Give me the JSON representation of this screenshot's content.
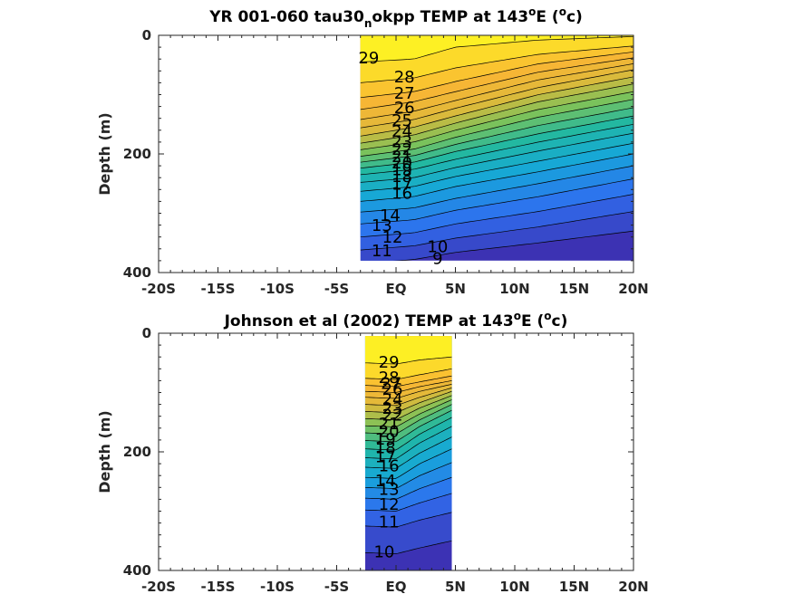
{
  "chart_data": [
    {
      "type": "heatmap",
      "title_parts": [
        "YR 001-060 tau30",
        "n",
        "okpp TEMP at 143",
        "o",
        "E (",
        "o",
        "c)"
      ],
      "ylabel": "Depth (m)",
      "xlim": [
        -20,
        20
      ],
      "ylim": [
        0,
        400
      ],
      "x_ticks": [
        -20,
        -15,
        -10,
        -5,
        0,
        5,
        10,
        15,
        20
      ],
      "x_tick_labels": [
        "-20S",
        "-15S",
        "-10S",
        "-5S",
        "EQ",
        "5N",
        "10N",
        "15N",
        "20N"
      ],
      "y_ticks": [
        0,
        200,
        400
      ],
      "y_tick_labels": [
        "0",
        "200",
        "400"
      ],
      "colormap": [
        "#3e26a8",
        "#2f6ff0",
        "#16a7d9",
        "#21b8a3",
        "#7cc25a",
        "#e0b93a",
        "#f9b634",
        "#fefb21"
      ],
      "data_extent": {
        "x": [
          -3,
          20
        ],
        "depth": [
          0,
          380
        ]
      },
      "contour_levels": [
        9,
        10,
        11,
        12,
        13,
        14,
        15,
        16,
        17,
        18,
        19,
        20,
        21,
        22,
        23,
        24,
        25,
        26,
        27,
        28,
        29
      ],
      "contour_depth_at_x": [
        -3,
        1.5,
        5,
        12,
        20
      ],
      "contour_depths": {
        "29": [
          45,
          40,
          20,
          8,
          2
        ],
        "28": [
          80,
          72,
          55,
          32,
          18
        ],
        "27": [
          105,
          95,
          78,
          48,
          28
        ],
        "26": [
          125,
          112,
          95,
          62,
          38
        ],
        "25": [
          142,
          128,
          110,
          75,
          48
        ],
        "24": [
          156,
          142,
          123,
          88,
          58
        ],
        "23": [
          170,
          155,
          136,
          100,
          70
        ],
        "22": [
          182,
          168,
          148,
          112,
          82
        ],
        "21": [
          193,
          180,
          160,
          125,
          95
        ],
        "20": [
          204,
          192,
          172,
          138,
          108
        ],
        "19": [
          214,
          203,
          184,
          152,
          122
        ],
        "18": [
          224,
          214,
          196,
          166,
          136
        ],
        "17": [
          235,
          226,
          209,
          180,
          150
        ],
        "16": [
          248,
          240,
          223,
          195,
          165
        ],
        "15": [
          263,
          255,
          238,
          212,
          182
        ],
        "14": [
          280,
          272,
          255,
          230,
          200
        ],
        "13": [
          298,
          291,
          275,
          250,
          220
        ],
        "12": [
          318,
          311,
          295,
          272,
          242
        ],
        "11": [
          340,
          333,
          318,
          297,
          268
        ],
        "10": [
          362,
          355,
          342,
          323,
          297
        ],
        "9": [
          385,
          378,
          366,
          350,
          330
        ]
      },
      "contour_labels": [
        {
          "text": "29",
          "x": -2.3,
          "depth": 40
        },
        {
          "text": "28",
          "x": 0.7,
          "depth": 72
        },
        {
          "text": "27",
          "x": 0.7,
          "depth": 99
        },
        {
          "text": "26",
          "x": 0.7,
          "depth": 124
        },
        {
          "text": "25",
          "x": 0.5,
          "depth": 145
        },
        {
          "text": "24",
          "x": 0.5,
          "depth": 163
        },
        {
          "text": "23",
          "x": 0.5,
          "depth": 181
        },
        {
          "text": "22",
          "x": 0.5,
          "depth": 194
        },
        {
          "text": "21",
          "x": 0.5,
          "depth": 206
        },
        {
          "text": "20",
          "x": 0.5,
          "depth": 217
        },
        {
          "text": "19",
          "x": 0.5,
          "depth": 228
        },
        {
          "text": "18",
          "x": 0.5,
          "depth": 240
        },
        {
          "text": "17",
          "x": 0.5,
          "depth": 253
        },
        {
          "text": "16",
          "x": 0.5,
          "depth": 268
        },
        {
          "text": "14",
          "x": -0.5,
          "depth": 305
        },
        {
          "text": "13",
          "x": -1.2,
          "depth": 322
        },
        {
          "text": "12",
          "x": -0.3,
          "depth": 342
        },
        {
          "text": "11",
          "x": -1.2,
          "depth": 365
        },
        {
          "text": "10",
          "x": 3.5,
          "depth": 358
        },
        {
          "text": "9",
          "x": 3.5,
          "depth": 378
        }
      ]
    },
    {
      "type": "heatmap",
      "title_parts": [
        "Johnson et al (2002) TEMP at 143",
        "o",
        "E (",
        "o",
        "c)"
      ],
      "ylabel": "Depth (m)",
      "xlim": [
        -20,
        20
      ],
      "ylim": [
        0,
        400
      ],
      "x_ticks": [
        -20,
        -15,
        -10,
        -5,
        0,
        5,
        10,
        15,
        20
      ],
      "x_tick_labels": [
        "-20S",
        "-15S",
        "-10S",
        "-5S",
        "EQ",
        "5N",
        "10N",
        "15N",
        "20N"
      ],
      "y_ticks": [
        0,
        200,
        400
      ],
      "y_tick_labels": [
        "0",
        "200",
        "400"
      ],
      "colormap": [
        "#3e26a8",
        "#2f6ff0",
        "#16a7d9",
        "#21b8a3",
        "#7cc25a",
        "#e0b93a",
        "#f9b634",
        "#fefb21"
      ],
      "data_extent": {
        "x": [
          -2.6,
          4.7
        ],
        "depth": [
          5,
          400
        ]
      },
      "contour_levels": [
        10,
        11,
        12,
        13,
        14,
        15,
        16,
        17,
        18,
        19,
        20,
        21,
        22,
        23,
        24,
        25,
        26,
        27,
        28,
        29
      ],
      "contour_depth_at_x": [
        -2.6,
        0,
        2,
        4.7
      ],
      "contour_depths": {
        "29": [
          50,
          52,
          45,
          40
        ],
        "28": [
          76,
          78,
          70,
          60
        ],
        "27": [
          88,
          90,
          82,
          72
        ],
        "26": [
          98,
          100,
          90,
          80
        ],
        "25": [
          108,
          110,
          98,
          86
        ],
        "24": [
          120,
          122,
          108,
          92
        ],
        "23": [
          132,
          134,
          117,
          98
        ],
        "22": [
          144,
          146,
          126,
          105
        ],
        "21": [
          156,
          158,
          136,
          112
        ],
        "20": [
          168,
          170,
          146,
          120
        ],
        "19": [
          181,
          183,
          157,
          130
        ],
        "18": [
          195,
          197,
          170,
          142
        ],
        "17": [
          210,
          212,
          185,
          157
        ],
        "16": [
          226,
          228,
          202,
          175
        ],
        "15": [
          243,
          245,
          220,
          195
        ],
        "14": [
          260,
          262,
          240,
          218
        ],
        "13": [
          278,
          280,
          262,
          243
        ],
        "12": [
          298,
          300,
          286,
          270
        ],
        "11": [
          325,
          327,
          315,
          302
        ],
        "10": [
          370,
          372,
          362,
          350
        ]
      },
      "contour_labels": [
        {
          "text": "29",
          "x": -0.6,
          "depth": 50
        },
        {
          "text": "28",
          "x": -0.6,
          "depth": 76
        },
        {
          "text": "27",
          "x": -0.4,
          "depth": 86
        },
        {
          "text": "26",
          "x": -0.3,
          "depth": 96
        },
        {
          "text": "24",
          "x": -0.3,
          "depth": 113
        },
        {
          "text": "23",
          "x": -0.3,
          "depth": 128
        },
        {
          "text": "22",
          "x": -0.3,
          "depth": 140
        },
        {
          "text": "21",
          "x": -0.6,
          "depth": 154
        },
        {
          "text": "20",
          "x": -0.6,
          "depth": 167
        },
        {
          "text": "19",
          "x": -0.9,
          "depth": 180
        },
        {
          "text": "18",
          "x": -0.9,
          "depth": 195
        },
        {
          "text": "17",
          "x": -0.9,
          "depth": 210
        },
        {
          "text": "16",
          "x": -0.6,
          "depth": 225
        },
        {
          "text": "14",
          "x": -0.9,
          "depth": 250
        },
        {
          "text": "13",
          "x": -0.6,
          "depth": 265
        },
        {
          "text": "12",
          "x": -0.6,
          "depth": 290
        },
        {
          "text": "11",
          "x": -0.6,
          "depth": 320
        },
        {
          "text": "10",
          "x": -1.0,
          "depth": 370
        }
      ]
    }
  ]
}
